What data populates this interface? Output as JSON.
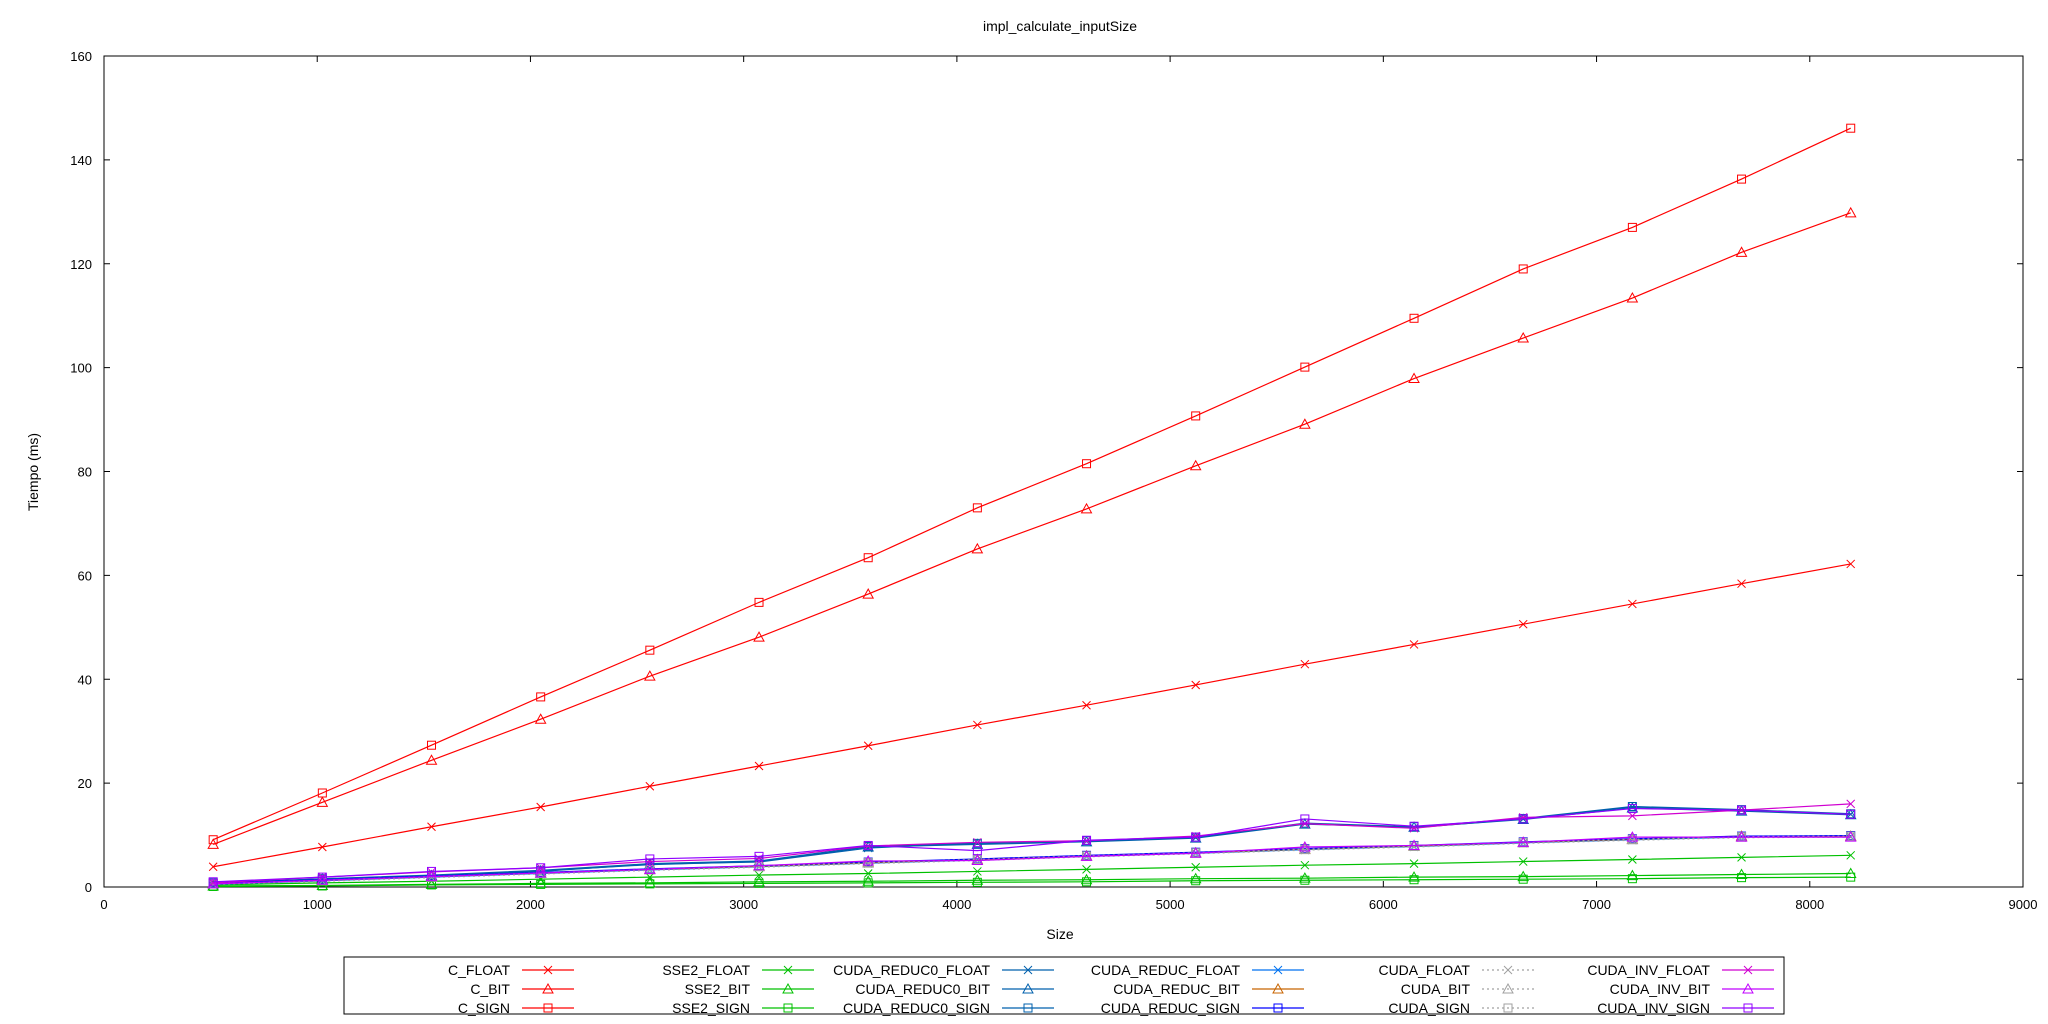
{
  "chart_data": {
    "type": "line",
    "title": "impl_calculate_inputSize",
    "xlabel": "Size",
    "ylabel": "Tiempo (ms)",
    "xlim": [
      0,
      9000
    ],
    "ylim": [
      0,
      160
    ],
    "xticks": [
      0,
      1000,
      2000,
      3000,
      4000,
      5000,
      6000,
      7000,
      8000,
      9000
    ],
    "yticks": [
      0,
      20,
      40,
      60,
      80,
      100,
      120,
      140,
      160
    ],
    "grid": false,
    "legend_position": "bottom-center",
    "x": [
      512,
      1024,
      1536,
      2048,
      2560,
      3072,
      3584,
      4096,
      4608,
      5120,
      5632,
      6144,
      6656,
      7168,
      7680,
      8192
    ],
    "series": [
      {
        "name": "C_FLOAT",
        "color": "#ff0000",
        "marker": "x",
        "dashed": false,
        "values": [
          3.9,
          7.7,
          11.6,
          15.4,
          19.4,
          23.3,
          27.2,
          31.2,
          35.0,
          38.9,
          42.9,
          46.7,
          50.6,
          54.5,
          58.4,
          62.2
        ]
      },
      {
        "name": "C_BIT",
        "color": "#ff0000",
        "marker": "triangle",
        "dashed": false,
        "values": [
          8.2,
          16.3,
          24.4,
          32.3,
          40.6,
          48.1,
          56.4,
          65.1,
          72.8,
          81.1,
          89.1,
          97.9,
          105.7,
          113.4,
          122.2,
          129.8
        ]
      },
      {
        "name": "C_SIGN",
        "color": "#ff0000",
        "marker": "square",
        "dashed": false,
        "values": [
          9.1,
          18.1,
          27.3,
          36.6,
          45.6,
          54.8,
          63.4,
          73.0,
          81.5,
          90.7,
          100.1,
          109.5,
          119.0,
          127.0,
          136.3,
          146.1
        ]
      },
      {
        "name": "SSE2_FLOAT",
        "color": "#00c000",
        "marker": "x",
        "dashed": false,
        "values": [
          0.4,
          0.8,
          1.1,
          1.5,
          1.9,
          2.3,
          2.6,
          3.0,
          3.4,
          3.8,
          4.2,
          4.5,
          4.9,
          5.3,
          5.7,
          6.1
        ]
      },
      {
        "name": "SSE2_BIT",
        "color": "#00c000",
        "marker": "triangle",
        "dashed": false,
        "values": [
          0.2,
          0.3,
          0.5,
          0.7,
          0.8,
          1.0,
          1.1,
          1.3,
          1.4,
          1.6,
          1.7,
          1.9,
          2.0,
          2.2,
          2.4,
          2.6
        ]
      },
      {
        "name": "SSE2_SIGN",
        "color": "#00c000",
        "marker": "square",
        "dashed": false,
        "values": [
          0.1,
          0.2,
          0.4,
          0.5,
          0.6,
          0.7,
          0.8,
          0.9,
          1.0,
          1.2,
          1.3,
          1.4,
          1.5,
          1.6,
          1.8,
          1.9
        ]
      },
      {
        "name": "CUDA_REDUC0_FLOAT",
        "color": "#0060ad",
        "marker": "x",
        "dashed": false,
        "values": [
          0.6,
          1.2,
          2.1,
          3.0,
          4.4,
          4.8,
          7.5,
          8.5,
          8.8,
          9.5,
          12.2,
          11.4,
          13.1,
          15.4,
          14.8,
          14.0
        ]
      },
      {
        "name": "CUDA_REDUC0_BIT",
        "color": "#0060ad",
        "marker": "triangle",
        "dashed": false,
        "values": [
          0.7,
          1.5,
          2.2,
          3.1,
          4.3,
          4.9,
          7.7,
          8.2,
          8.7,
          9.4,
          12.1,
          11.5,
          13.0,
          15.2,
          14.6,
          13.9
        ]
      },
      {
        "name": "CUDA_REDUC0_SIGN",
        "color": "#0060ad",
        "marker": "square",
        "dashed": false,
        "values": [
          0.8,
          1.6,
          2.3,
          3.2,
          4.5,
          5.0,
          7.8,
          8.4,
          8.9,
          9.6,
          12.3,
          11.6,
          13.2,
          15.5,
          14.9,
          14.1
        ]
      },
      {
        "name": "CUDA_REDUC_FLOAT",
        "color": "#0072f0",
        "marker": "x",
        "dashed": false,
        "values": [
          0.5,
          1.2,
          1.9,
          2.6,
          3.3,
          3.9,
          4.6,
          5.2,
          5.9,
          6.5,
          7.2,
          7.8,
          8.5,
          9.1,
          9.6,
          9.7
        ]
      },
      {
        "name": "CUDA_REDUC_BIT",
        "color": "#c86400",
        "marker": "triangle",
        "dashed": false,
        "values": [
          0.6,
          1.3,
          2.0,
          2.7,
          3.4,
          4.0,
          4.7,
          5.3,
          6.0,
          6.6,
          7.3,
          7.9,
          8.6,
          9.2,
          9.8,
          9.8
        ]
      },
      {
        "name": "CUDA_REDUC_SIGN",
        "color": "#0000ff",
        "marker": "square",
        "dashed": false,
        "values": [
          0.7,
          1.4,
          2.1,
          2.8,
          3.5,
          4.1,
          4.8,
          5.4,
          6.1,
          6.7,
          7.4,
          8.0,
          8.7,
          9.3,
          9.8,
          9.9
        ]
      },
      {
        "name": "CUDA_FLOAT",
        "color": "#a0a0a0",
        "marker": "x",
        "dashed": true,
        "values": [
          0.5,
          1.1,
          1.8,
          2.5,
          3.2,
          3.8,
          4.5,
          5.1,
          5.8,
          6.4,
          7.1,
          7.7,
          8.4,
          9.0,
          9.5,
          9.6
        ]
      },
      {
        "name": "CUDA_BIT",
        "color": "#a0a0a0",
        "marker": "triangle",
        "dashed": true,
        "values": [
          0.6,
          1.2,
          1.9,
          2.6,
          3.3,
          3.9,
          4.6,
          5.2,
          5.9,
          6.5,
          7.2,
          7.8,
          8.5,
          9.1,
          9.6,
          9.7
        ]
      },
      {
        "name": "CUDA_SIGN",
        "color": "#a0a0a0",
        "marker": "square",
        "dashed": true,
        "values": [
          0.6,
          1.3,
          2.0,
          2.7,
          3.4,
          4.0,
          4.7,
          5.3,
          6.0,
          6.6,
          7.3,
          7.9,
          8.6,
          9.2,
          9.7,
          9.8
        ]
      },
      {
        "name": "CUDA_INV_FLOAT",
        "color": "#d000d0",
        "marker": "x",
        "dashed": false,
        "values": [
          0.8,
          1.9,
          2.9,
          3.7,
          4.9,
          5.5,
          7.9,
          8.6,
          8.9,
          9.8,
          12.2,
          11.3,
          13.4,
          13.7,
          14.8,
          16.0
        ]
      },
      {
        "name": "CUDA_INV_BIT",
        "color": "#c000ff",
        "marker": "triangle",
        "dashed": false,
        "values": [
          0.6,
          1.3,
          2.0,
          2.7,
          3.4,
          4.1,
          5.0,
          5.1,
          5.9,
          6.5,
          7.7,
          8.0,
          8.6,
          9.6,
          9.6,
          9.6
        ]
      },
      {
        "name": "CUDA_INV_SIGN",
        "color": "#9000ff",
        "marker": "square",
        "dashed": false,
        "values": [
          1.0,
          1.9,
          3.0,
          3.7,
          5.4,
          5.9,
          8.0,
          7.0,
          9.0,
          9.6,
          13.1,
          11.7,
          13.1,
          15.1,
          14.8,
          14.0
        ]
      }
    ]
  }
}
